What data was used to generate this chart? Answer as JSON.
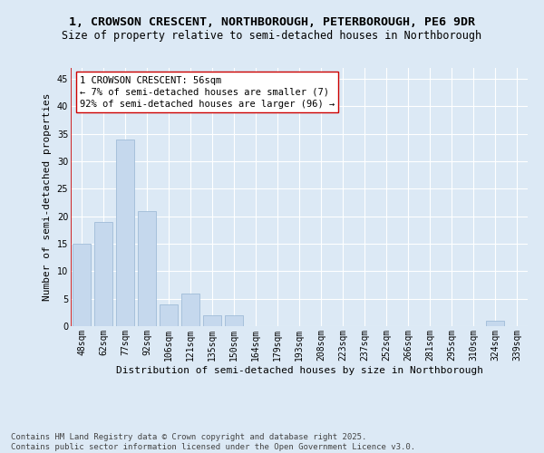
{
  "title_line1": "1, CROWSON CRESCENT, NORTHBOROUGH, PETERBOROUGH, PE6 9DR",
  "title_line2": "Size of property relative to semi-detached houses in Northborough",
  "xlabel": "Distribution of semi-detached houses by size in Northborough",
  "ylabel": "Number of semi-detached properties",
  "categories": [
    "48sqm",
    "62sqm",
    "77sqm",
    "92sqm",
    "106sqm",
    "121sqm",
    "135sqm",
    "150sqm",
    "164sqm",
    "179sqm",
    "193sqm",
    "208sqm",
    "223sqm",
    "237sqm",
    "252sqm",
    "266sqm",
    "281sqm",
    "295sqm",
    "310sqm",
    "324sqm",
    "339sqm"
  ],
  "values": [
    15,
    19,
    34,
    21,
    4,
    6,
    2,
    2,
    0,
    0,
    0,
    0,
    0,
    0,
    0,
    0,
    0,
    0,
    0,
    1,
    0
  ],
  "bar_color": "#c5d8ed",
  "bar_edge_color": "#a0bcd8",
  "highlight_color": "#cc0000",
  "annotation_text": "1 CROWSON CRESCENT: 56sqm\n← 7% of semi-detached houses are smaller (7)\n92% of semi-detached houses are larger (96) →",
  "annotation_box_color": "#ffffff",
  "annotation_border_color": "#cc0000",
  "ylim": [
    0,
    47
  ],
  "yticks": [
    0,
    5,
    10,
    15,
    20,
    25,
    30,
    35,
    40,
    45
  ],
  "background_color": "#dce9f5",
  "plot_bg_color": "#dce9f5",
  "footer_line1": "Contains HM Land Registry data © Crown copyright and database right 2025.",
  "footer_line2": "Contains public sector information licensed under the Open Government Licence v3.0.",
  "title_fontsize": 9.5,
  "subtitle_fontsize": 8.5,
  "axis_label_fontsize": 8,
  "tick_fontsize": 7,
  "annotation_fontsize": 7.5,
  "footer_fontsize": 6.5
}
